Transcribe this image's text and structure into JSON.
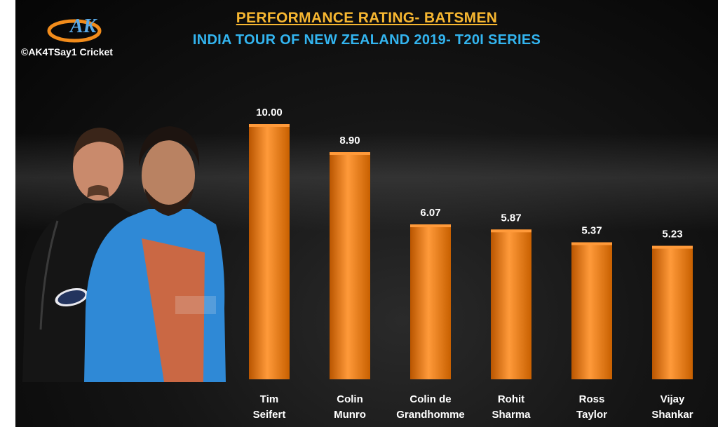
{
  "header": {
    "title": "PERFORMANCE RATING- BATSMEN",
    "subtitle": "INDIA TOUR OF NEW ZEALAND 2019- T20I SERIES",
    "credit": "©AK4TSay1 Cricket",
    "logo_text": "AK"
  },
  "colors": {
    "title": "#f7b731",
    "subtitle": "#33b5f0",
    "bar": "#e8780e",
    "bar_highlight": "#ff9a3a",
    "bar_shadow": "#b95500"
  },
  "chart_data": {
    "type": "bar",
    "title": "PERFORMANCE RATING- BATSMEN",
    "subtitle": "INDIA TOUR OF NEW ZEALAND 2019- T20I SERIES",
    "categories": [
      [
        "Tim",
        "Seifert"
      ],
      [
        "Colin",
        "Munro"
      ],
      [
        "Colin de",
        "Grandhomme"
      ],
      [
        "Rohit",
        "Sharma"
      ],
      [
        "Ross",
        "Taylor"
      ],
      [
        "Vijay",
        "Shankar"
      ]
    ],
    "values": [
      10.0,
      8.9,
      6.07,
      5.87,
      5.37,
      5.23
    ],
    "value_labels": [
      "10.00",
      "8.90",
      "6.07",
      "5.87",
      "5.37",
      "5.23"
    ],
    "xlabel": "",
    "ylabel": "",
    "ylim": [
      0,
      10
    ],
    "grid": false,
    "legend": "none"
  }
}
